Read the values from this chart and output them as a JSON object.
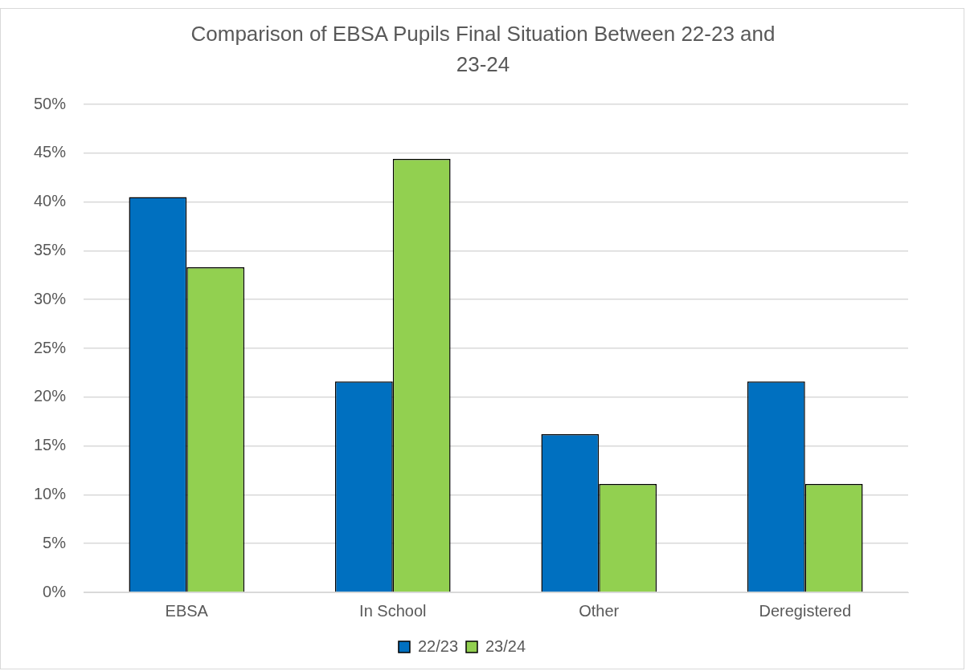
{
  "chart_data": {
    "type": "bar",
    "title": "Comparison of EBSA Pupils Final Situation Between 22-23 and 23-24",
    "categories": [
      "EBSA",
      "In School",
      "Other",
      "Deregistered"
    ],
    "series": [
      {
        "name": "22/23",
        "color": "#0070c0",
        "values": [
          40.5,
          21.6,
          16.2,
          21.6
        ]
      },
      {
        "name": "23/24",
        "color": "#92d050",
        "values": [
          33.3,
          44.4,
          11.1,
          11.1
        ]
      }
    ],
    "ylim": [
      0,
      50
    ],
    "yticks": [
      {
        "value": 0,
        "label": "0%"
      },
      {
        "value": 5,
        "label": "5%"
      },
      {
        "value": 10,
        "label": "10%"
      },
      {
        "value": 15,
        "label": "15%"
      },
      {
        "value": 20,
        "label": "20%"
      },
      {
        "value": 25,
        "label": "25%"
      },
      {
        "value": 30,
        "label": "30%"
      },
      {
        "value": 35,
        "label": "35%"
      },
      {
        "value": 40,
        "label": "40%"
      },
      {
        "value": 45,
        "label": "45%"
      },
      {
        "value": 50,
        "label": "50%"
      }
    ],
    "grid": "y",
    "legend": "bottom"
  }
}
